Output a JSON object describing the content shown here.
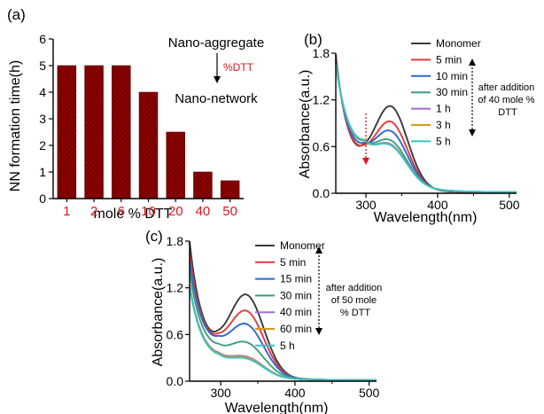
{
  "colors": {
    "bar_fill": "#8b0000",
    "bar_hatch": "#5a0000",
    "category_label": "#e0141e",
    "dtt_text": "#e0141e",
    "arrow_red": "#e0141e"
  },
  "chart_data": [
    {
      "panel": "(a)",
      "type": "bar",
      "categories": [
        "1",
        "2",
        "6",
        "10",
        "20",
        "40",
        "50"
      ],
      "values": [
        5,
        5,
        5,
        4,
        2.5,
        1,
        0.67
      ],
      "xlabel": "mole % DTT",
      "ylabel": "NN formation time(h)",
      "ylim": [
        0,
        6
      ],
      "yticks": [
        0,
        1,
        2,
        3,
        4,
        5,
        6
      ],
      "annotations": {
        "top": "Nano-aggregate",
        "arrow_label": "%DTT",
        "bottom": "Nano-network"
      }
    },
    {
      "panel": "(b)",
      "type": "line",
      "xlabel": "Wavelength(nm)",
      "ylabel": "Absorbance(a.u.)",
      "xlim": [
        258,
        510
      ],
      "ylim": [
        0,
        1.8
      ],
      "xticks": [
        300,
        400,
        500
      ],
      "yticks": [
        "0.0",
        "0.6",
        "1.2",
        "1.8"
      ],
      "annotation": "after addition of 40 mole % DTT",
      "annotation_lines": [
        "after addition",
        "of 40 mole %",
        "DTT"
      ],
      "series": [
        {
          "name": "Monomer",
          "color": "#3a3a3a",
          "peak": 1.02,
          "trough_y": 0.44,
          "start": 1.79
        },
        {
          "name": "5 min",
          "color": "#e8383a",
          "peak": 0.8,
          "trough_y": 0.44,
          "start": 1.75
        },
        {
          "name": "10 min",
          "color": "#2f66d0",
          "peak": 0.65,
          "trough_y": 0.48,
          "start": 1.72
        },
        {
          "name": "30 min",
          "color": "#3aa17a",
          "peak": 0.5,
          "trough_y": 0.52,
          "start": 1.7
        },
        {
          "name": "1 h",
          "color": "#a469d8",
          "peak": 0.44,
          "trough_y": 0.53,
          "start": 1.69
        },
        {
          "name": "3 h",
          "color": "#d89a10",
          "peak": 0.43,
          "trough_y": 0.53,
          "start": 1.68
        },
        {
          "name": "5 h",
          "color": "#35c4c8",
          "peak": 0.42,
          "trough_y": 0.54,
          "start": 1.67
        }
      ]
    },
    {
      "panel": "(c)",
      "type": "line",
      "xlabel": "Wavelength(nm)",
      "ylabel": "Absorbance(a.u.)",
      "xlim": [
        258,
        510
      ],
      "ylim": [
        0,
        1.8
      ],
      "xticks": [
        300,
        400,
        500
      ],
      "yticks": [
        "0.0",
        "0.6",
        "1.2",
        "1.8"
      ],
      "annotation": "after addition of 50 mole % DTT",
      "annotation_lines": [
        "after addition",
        "of 50 mole",
        "% DTT"
      ],
      "series": [
        {
          "name": "Monomer",
          "color": "#3a3a3a",
          "peak": 1.0,
          "trough_y": 0.47,
          "start": 1.8
        },
        {
          "name": "5 min",
          "color": "#e8383a",
          "peak": 0.78,
          "trough_y": 0.45,
          "start": 1.65
        },
        {
          "name": "15 min",
          "color": "#2f66d0",
          "peak": 0.6,
          "trough_y": 0.43,
          "start": 1.55
        },
        {
          "name": "30 min",
          "color": "#3aa17a",
          "peak": 0.38,
          "trough_y": 0.34,
          "start": 1.42
        },
        {
          "name": "40 min",
          "color": "#a469d8",
          "peak": 0.22,
          "trough_y": 0.24,
          "start": 1.25
        },
        {
          "name": "60 min",
          "color": "#d89a10",
          "peak": 0.21,
          "trough_y": 0.23,
          "start": 1.24
        },
        {
          "name": "5 h",
          "color": "#35c4c8",
          "peak": 0.2,
          "trough_y": 0.22,
          "start": 1.22
        }
      ]
    }
  ]
}
